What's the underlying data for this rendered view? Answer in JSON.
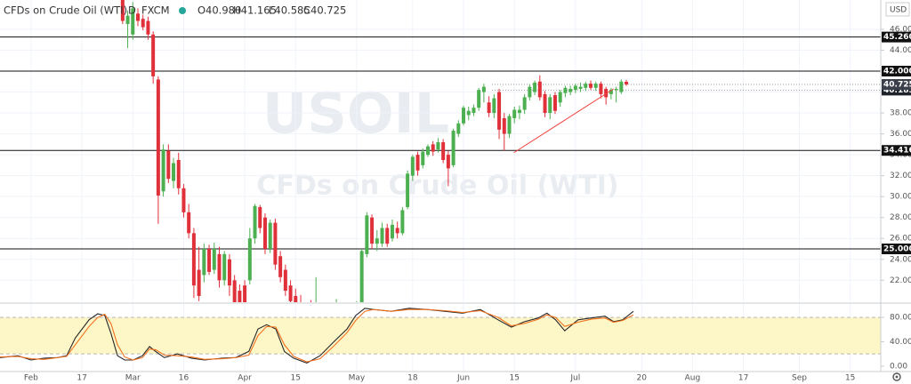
{
  "chart_data": {
    "type": "candlestick",
    "title": "CFDs on Crude Oil (WTI)",
    "interval": "D",
    "source": "FXCM",
    "ohlc": [
      "O40.980",
      "H41.165",
      "L40.585",
      "C40.725"
    ],
    "currency": "USD",
    "watermark": [
      "USOIL",
      "CFDs on Crude Oil (WTI)"
    ],
    "up_color": "#4caf50",
    "down_color": "#e0303a",
    "xlim": [
      -6.1,
      167
    ],
    "xticks": [
      {
        "value": 0,
        "label": "Feb"
      },
      {
        "value": 10,
        "label": "17"
      },
      {
        "value": 20,
        "label": "Mar"
      },
      {
        "value": 30,
        "label": "16"
      },
      {
        "value": 42,
        "label": "Apr"
      },
      {
        "value": 52,
        "label": "15"
      },
      {
        "value": 64,
        "label": "May"
      },
      {
        "value": 75,
        "label": "18"
      },
      {
        "value": 85,
        "label": "Jun"
      },
      {
        "value": 95,
        "label": "15"
      },
      {
        "value": 107,
        "label": "Jul"
      },
      {
        "value": 120,
        "label": "20"
      },
      {
        "value": 130,
        "label": "Aug"
      },
      {
        "value": 140,
        "label": "17"
      },
      {
        "value": 151,
        "label": "Sep"
      },
      {
        "value": 161,
        "label": "15"
      }
    ],
    "ylim": [
      19.9,
      48.8
    ],
    "yticks": [
      {
        "value": 22,
        "label": "22.000"
      },
      {
        "value": 24,
        "label": "24.000"
      },
      {
        "value": 26,
        "label": "26.000"
      },
      {
        "value": 28,
        "label": "28.000"
      },
      {
        "value": 30,
        "label": "30.000"
      },
      {
        "value": 32,
        "label": "32.000"
      },
      {
        "value": 34,
        "label": "34.000"
      },
      {
        "value": 36,
        "label": "36.000"
      },
      {
        "value": 38,
        "label": "38.000"
      },
      {
        "value": 40,
        "label": "40.000"
      },
      {
        "value": 42,
        "label": "42.000"
      },
      {
        "value": 44,
        "label": "44.000"
      },
      {
        "value": 46,
        "label": "46.000"
      }
    ],
    "candles": {
      "x": [
        18,
        19,
        20,
        21,
        22,
        23,
        24,
        25,
        26,
        27,
        28,
        29,
        30,
        31,
        32,
        33,
        34,
        35,
        36,
        37,
        38,
        39,
        40,
        41,
        42,
        43,
        44,
        45,
        46,
        47,
        48,
        49,
        50,
        51,
        52,
        53,
        54,
        55,
        56,
        57,
        58,
        59,
        60,
        61,
        62,
        63,
        64,
        65,
        66,
        67,
        68,
        69,
        70,
        71,
        72,
        73,
        74,
        75,
        76,
        77,
        78,
        79,
        80,
        81,
        82,
        83,
        84,
        85,
        86,
        87,
        88,
        89,
        90,
        91,
        92,
        93,
        94,
        95,
        96,
        97,
        98,
        99,
        100,
        101,
        102,
        103,
        104,
        105,
        106,
        107,
        108,
        109,
        110,
        111,
        112,
        113,
        114,
        115,
        116,
        117
      ],
      "open": [
        49,
        46.5,
        45.5,
        47.5,
        47,
        46.8,
        45.5,
        41.2,
        30.5,
        34.4,
        31.5,
        33.5,
        30.8,
        28.5,
        26.5,
        23,
        22.5,
        25,
        23,
        24.5,
        22,
        24,
        22,
        21,
        21.5,
        22,
        26,
        29,
        28,
        25,
        27.5,
        24.3,
        23,
        21.5,
        20.5,
        19.8,
        18.5,
        19,
        17,
        18.5,
        17.5,
        16.5,
        17.8,
        19.2,
        18,
        19,
        18.8,
        19.5,
        24.5,
        28,
        25.5,
        25.5,
        27,
        26,
        27,
        26.5,
        29,
        32,
        34,
        33,
        34,
        35,
        34.5,
        35.2,
        34,
        33,
        36,
        37,
        37.8,
        38,
        38.5,
        40,
        39,
        38,
        40,
        37.5,
        36,
        37.5,
        38,
        38.3,
        39.5,
        40,
        41,
        39.8,
        38,
        39.7,
        39,
        39.9,
        40,
        40.2,
        40.3,
        40.4,
        40.8,
        40.4,
        40.8,
        40.3,
        39.8,
        40.2,
        40,
        40.98
      ],
      "high": [
        49.5,
        47.8,
        48.6,
        48,
        47.4,
        47.2,
        45.8,
        41.5,
        35,
        35,
        33.7,
        34.2,
        31.2,
        29.3,
        27,
        25.2,
        25.5,
        25.4,
        25.6,
        25.2,
        24.8,
        24.5,
        22.5,
        21.6,
        22,
        27,
        29.3,
        29.2,
        28.4,
        27.8,
        27.9,
        24.8,
        23.5,
        22,
        21.2,
        20.6,
        19.8,
        20.1,
        22.3,
        19.5,
        18.8,
        18,
        20.2,
        19.8,
        19.5,
        19.7,
        20,
        25,
        28.5,
        28.3,
        26.8,
        27.5,
        27.4,
        27.8,
        27.6,
        29,
        32.5,
        34,
        34.3,
        34.6,
        35,
        35.3,
        35.6,
        35.5,
        34.4,
        36.5,
        37.3,
        38.7,
        38.6,
        38.8,
        40.4,
        40.8,
        39.6,
        39.8,
        40.3,
        38,
        37.9,
        38.6,
        38.7,
        39.8,
        40.7,
        41.1,
        41.6,
        40.1,
        39.8,
        40,
        40.2,
        40.6,
        40.6,
        40.8,
        40.9,
        41,
        41.1,
        41,
        41,
        40.5,
        40.4,
        40.5,
        41.2,
        41.165
      ],
      "low": [
        46.5,
        44.2,
        45,
        46.3,
        45.9,
        45,
        40.8,
        27.4,
        30,
        31.3,
        30.8,
        30.2,
        28,
        26,
        20.3,
        20,
        21.8,
        22.5,
        22.6,
        21.3,
        21.5,
        20.5,
        18.5,
        19,
        19.3,
        21.6,
        25.5,
        26.5,
        24.5,
        24.6,
        23,
        21.8,
        20.5,
        19.5,
        19,
        18,
        17.5,
        16.5,
        15,
        16,
        15.5,
        14.5,
        17,
        17.5,
        16.8,
        18,
        18.2,
        19.2,
        24.2,
        25,
        24.8,
        25.2,
        25.2,
        25.7,
        26,
        26.3,
        28.8,
        31.5,
        32,
        32.7,
        33.8,
        33.9,
        34.2,
        33.2,
        31,
        32.8,
        35.7,
        36.8,
        37.3,
        37.7,
        38.2,
        39,
        37.6,
        37.5,
        35.5,
        34.4,
        35.6,
        37,
        37.4,
        37.9,
        39.2,
        39.7,
        39.2,
        37.6,
        37.4,
        37.9,
        38.6,
        39.5,
        39.7,
        39.9,
        40,
        40.1,
        40.2,
        40.1,
        39.4,
        38.8,
        39.3,
        39,
        39.8,
        40.585
      ],
      "close": [
        46.8,
        47.3,
        48,
        46.8,
        46.2,
        45.5,
        41.5,
        30.1,
        34.5,
        31.7,
        33.2,
        30.8,
        28.5,
        26.5,
        21.5,
        20.5,
        25,
        22.8,
        25,
        22,
        24.5,
        21.5,
        19,
        19.5,
        19.8,
        26,
        29.1,
        27,
        25,
        27.5,
        23.5,
        22.3,
        21,
        20,
        19.8,
        18.5,
        19,
        17,
        18.5,
        17.5,
        16.5,
        17.8,
        19.2,
        18,
        19,
        18.8,
        19.5,
        24.8,
        28.2,
        25.5,
        26,
        27,
        25.5,
        27.3,
        26.5,
        28.7,
        32.2,
        33.8,
        32.5,
        34.3,
        34.8,
        34.3,
        35.2,
        33.5,
        32.7,
        36.3,
        37,
        38.5,
        38.2,
        38.5,
        40.2,
        40.5,
        38,
        39.4,
        36.4,
        36,
        37.7,
        38.3,
        38.3,
        39.5,
        40.5,
        40.9,
        39.5,
        38,
        39.5,
        38.2,
        40,
        40.4,
        40.3,
        40.6,
        40.5,
        40.8,
        40.4,
        40.8,
        39.8,
        39.5,
        40.2,
        40.3,
        41,
        40.725
      ]
    },
    "price_lines": [
      {
        "value": 45.26,
        "label": "45.260"
      },
      {
        "value": 42,
        "label": "42.000"
      },
      {
        "value": 34.416,
        "label": "34.416"
      },
      {
        "value": 25,
        "label": "25.000"
      }
    ],
    "dotted_lines": [
      {
        "x": 90.6,
        "value": 40.725,
        "label": "40.725",
        "color": "#3a3f4b"
      },
      {
        "x": 90.6,
        "value": 40.183,
        "label": "40.183",
        "color": "#1f232b"
      }
    ],
    "trendline": {
      "x": [
        94.9,
        114.5
      ],
      "y": [
        34.2,
        40.3
      ],
      "color": "#f0403c"
    },
    "stochastic": {
      "type": "line",
      "x": [
        -6.1,
        -2.6,
        0,
        2.6,
        5.2,
        7,
        8.7,
        11.4,
        13.1,
        14.5,
        15.7,
        17,
        18.4,
        20.1,
        21.9,
        23.3,
        24.5,
        26.2,
        28.8,
        31.5,
        34.1,
        37.6,
        40.2,
        42.8,
        44.6,
        46.3,
        48.1,
        49.8,
        51.6,
        54.2,
        56.8,
        59.4,
        62.1,
        63.8,
        65.6,
        67.3,
        70.8,
        74.3,
        77.8,
        81.3,
        84.8,
        88.3,
        91.8,
        94.4,
        97,
        99.7,
        101.4,
        103.1,
        104.9,
        107.5,
        110.1,
        112.8,
        114.5,
        116.3,
        118.4
      ],
      "ylim": [
        -9,
        102
      ],
      "yticks": [
        {
          "value": 0,
          "label": "0.00"
        },
        {
          "value": 40,
          "label": "40.00"
        },
        {
          "value": 80,
          "label": "80.00"
        }
      ],
      "band": [
        20,
        80
      ],
      "band_color": "#fdf6c6",
      "series": [
        {
          "color": "#262626",
          "values": [
            14,
            17,
            10,
            13,
            14,
            17,
            46,
            76,
            86,
            83,
            54,
            17,
            10,
            10,
            17,
            32,
            24,
            14,
            20,
            13,
            10,
            13,
            14,
            24,
            61,
            68,
            61,
            24,
            13,
            5,
            17,
            39,
            61,
            83,
            95,
            93,
            90,
            95,
            93,
            90,
            87,
            93,
            76,
            64,
            73,
            79,
            87,
            76,
            58,
            76,
            79,
            82,
            73,
            76,
            90
          ]
        },
        {
          "color": "#f2711c",
          "values": [
            15,
            16,
            12,
            11,
            14,
            16,
            35,
            65,
            80,
            85,
            70,
            35,
            15,
            10,
            14,
            28,
            27,
            18,
            17,
            15,
            11,
            12,
            14,
            18,
            50,
            65,
            64,
            35,
            16,
            7,
            12,
            32,
            55,
            75,
            90,
            93,
            90,
            93,
            93,
            91,
            88,
            91,
            80,
            66,
            70,
            77,
            84,
            80,
            65,
            72,
            77,
            79,
            72,
            75,
            84
          ]
        }
      ]
    }
  }
}
